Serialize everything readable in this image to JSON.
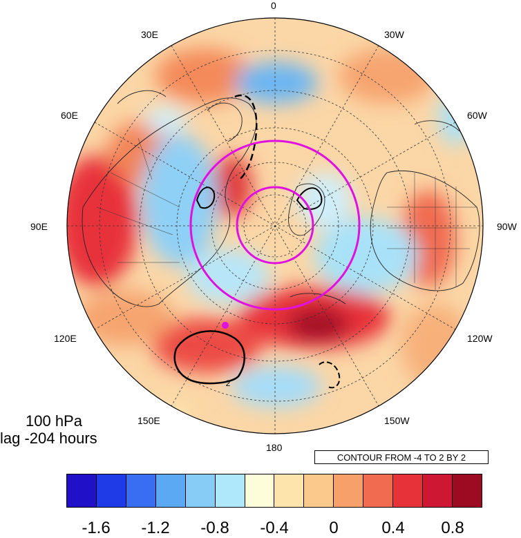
{
  "map": {
    "projection": "north-polar-stereographic",
    "longitude_labels": {
      "top": "0",
      "l30e": "30E",
      "r30w": "30W",
      "l60e": "60E",
      "r60w": "60W",
      "l90e": "90E",
      "r90w": "90W",
      "l120e": "120E",
      "r120w": "120W",
      "l150e": "150E",
      "r150w": "150W",
      "bottom": "180"
    },
    "level_text": "100 hPa",
    "lag_text": "lag -204 hours",
    "contour_info": "CONTOUR FROM -4 TO 2 BY 2",
    "contour_label": "2",
    "highlight_circle_color": "#e011e0"
  },
  "colorbar": {
    "colors": [
      "#2011c8",
      "#1f3be8",
      "#3a6ef2",
      "#5ba8f3",
      "#86ccf6",
      "#aee8fa",
      "#fefdd9",
      "#fde4ad",
      "#fbc98b",
      "#f7a06a",
      "#f06b4f",
      "#e8323a",
      "#cd1733",
      "#9d0b22"
    ],
    "tick_labels": [
      "-1.6",
      "-1.2",
      "-0.8",
      "-0.4",
      "0",
      "0.4",
      "0.8"
    ]
  }
}
